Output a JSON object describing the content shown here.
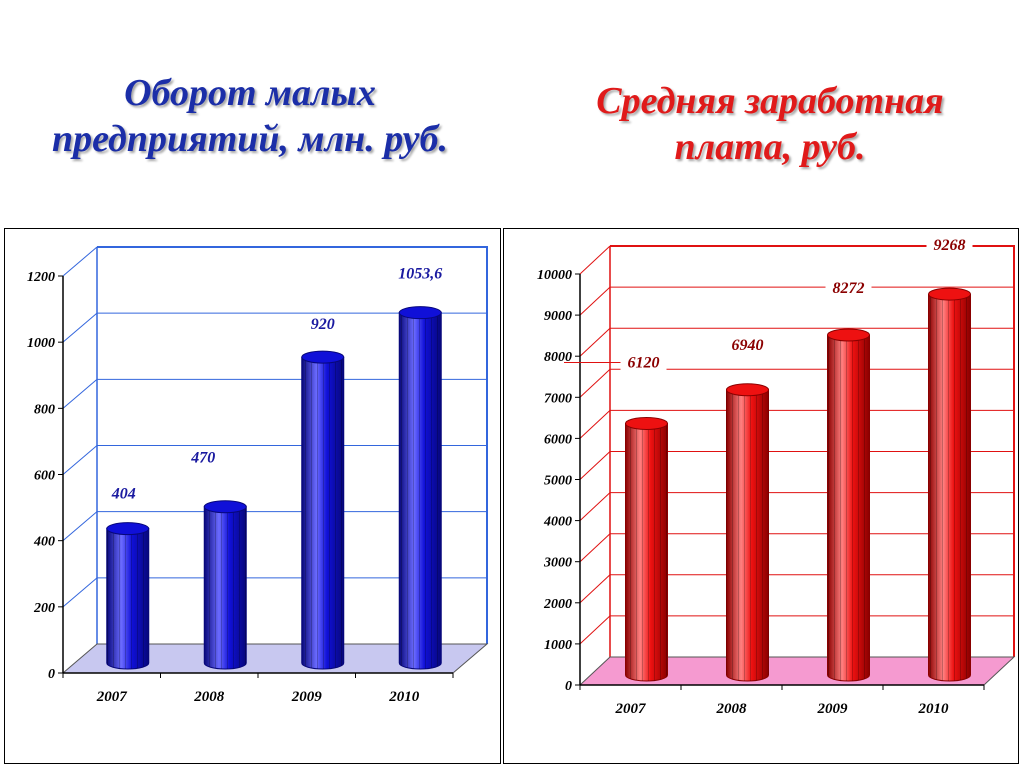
{
  "titles": {
    "left": "Оборот малых\nпредприятий, млн. руб.",
    "right": "Средняя заработная\nплата, руб."
  },
  "colors": {
    "left_title": "#1b2ea8",
    "right_title": "#e01a1a",
    "left_bar": "#1010d8",
    "left_bar_dark": "#07077a",
    "left_bar_light": "#6b6bff",
    "left_grid": "#3366dd",
    "left_floor": "#c8c8f0",
    "left_value_text": "#1a1aa0",
    "right_bar": "#ee1111",
    "right_bar_dark": "#8a0000",
    "right_bar_light": "#ff8080",
    "right_grid": "#e01111",
    "right_floor": "#f59ad0",
    "right_value_text": "#8b0000"
  },
  "chart_data": [
    {
      "type": "bar",
      "title": "Оборот малых предприятий, млн. руб.",
      "categories": [
        "2007",
        "2008",
        "2009",
        "2010"
      ],
      "values": [
        404,
        470,
        920,
        1053.6
      ],
      "value_labels": [
        "404",
        "470",
        "920",
        "1053,6"
      ],
      "yticks": [
        0,
        200,
        400,
        600,
        800,
        1000,
        1200
      ],
      "ylim": [
        0,
        1200
      ],
      "grid": true,
      "xlabel": "",
      "ylabel": ""
    },
    {
      "type": "bar",
      "title": "Средняя заработная плата, руб.",
      "categories": [
        "2007",
        "2008",
        "2009",
        "2010"
      ],
      "values": [
        6120,
        6940,
        8272,
        9268
      ],
      "value_labels": [
        "6120",
        "6940",
        "8272",
        "9268"
      ],
      "yticks": [
        0,
        1000,
        2000,
        3000,
        4000,
        5000,
        6000,
        7000,
        8000,
        9000,
        10000
      ],
      "ylim": [
        0,
        10000
      ],
      "grid": true,
      "xlabel": "",
      "ylabel": ""
    }
  ]
}
